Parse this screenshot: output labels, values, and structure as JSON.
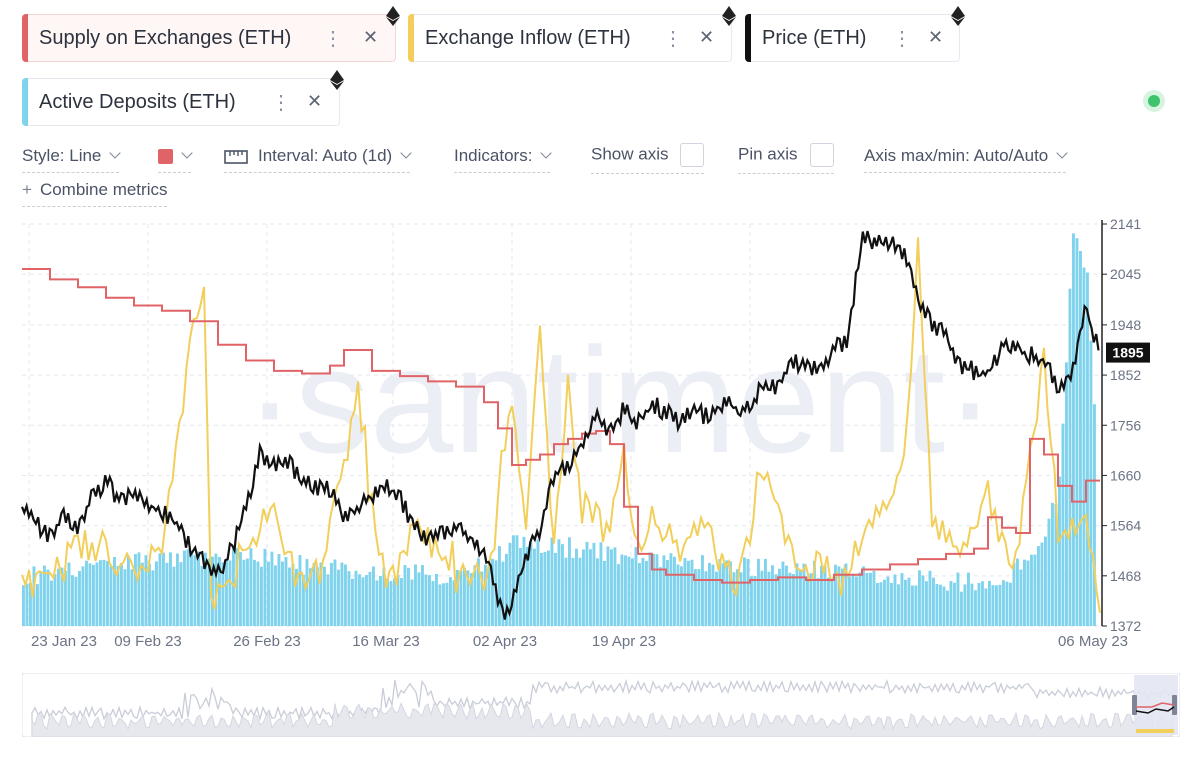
{
  "metric_chips": [
    {
      "label": "Supply on Exchanges (ETH)",
      "color": "#e06467",
      "more_icon": "vertical-dots-icon",
      "close_icon": "close-icon"
    },
    {
      "label": "Exchange Inflow (ETH)",
      "color": "#f2cf5b",
      "more_icon": "vertical-dots-icon",
      "close_icon": "close-icon"
    },
    {
      "label": "Price (ETH)",
      "color": "#111111",
      "more_icon": "vertical-dots-icon",
      "close_icon": "close-icon"
    },
    {
      "label": "Active Deposits (ETH)",
      "color": "#7fd3ec",
      "more_icon": "vertical-dots-icon",
      "close_icon": "close-icon"
    }
  ],
  "toolbar": {
    "style_label": "Style: Line",
    "color_swatch": "#e06467",
    "interval_label": "Interval: Auto (1d)",
    "indicators_label": "Indicators:",
    "show_axis_label": "Show axis",
    "pin_axis_label": "Pin axis",
    "axis_minmax_label": "Axis max/min: Auto/Auto",
    "combine_label": "Combine metrics"
  },
  "status_dot_color": "#3ec46d",
  "watermark": "·santiment·",
  "chart_data": {
    "type": "line",
    "x_ticks": [
      "23 Jan 23",
      "09 Feb 23",
      "26 Feb 23",
      "16 Mar 23",
      "02 Apr 23",
      "19 Apr 23",
      "06 May 23"
    ],
    "x_range": [
      "22 Jan 23",
      "07 May 23"
    ],
    "y_ticks": [
      2141,
      2045,
      1948,
      1852,
      1756,
      1660,
      1564,
      1468,
      1372
    ],
    "ylim": [
      1372,
      2141
    ],
    "current_price_label": "1895",
    "grid": true,
    "series": [
      {
        "name": "Price (ETH)",
        "color": "#111111",
        "type": "line",
        "values": [
          [
            0,
            1600
          ],
          [
            2,
            1570
          ],
          [
            4,
            1540
          ],
          [
            6,
            1585
          ],
          [
            8,
            1560
          ],
          [
            10,
            1620
          ],
          [
            12,
            1650
          ],
          [
            14,
            1610
          ],
          [
            16,
            1630
          ],
          [
            18,
            1600
          ],
          [
            20,
            1590
          ],
          [
            22,
            1570
          ],
          [
            24,
            1520
          ],
          [
            26,
            1500
          ],
          [
            28,
            1470
          ],
          [
            30,
            1520
          ],
          [
            32,
            1600
          ],
          [
            34,
            1700
          ],
          [
            36,
            1680
          ],
          [
            38,
            1690
          ],
          [
            40,
            1650
          ],
          [
            42,
            1640
          ],
          [
            44,
            1630
          ],
          [
            46,
            1580
          ],
          [
            48,
            1600
          ],
          [
            50,
            1620
          ],
          [
            52,
            1640
          ],
          [
            54,
            1620
          ],
          [
            56,
            1560
          ],
          [
            58,
            1540
          ],
          [
            60,
            1550
          ],
          [
            62,
            1560
          ],
          [
            64,
            1540
          ],
          [
            66,
            1510
          ],
          [
            68,
            1430
          ],
          [
            69,
            1390
          ],
          [
            70,
            1420
          ],
          [
            72,
            1500
          ],
          [
            74,
            1560
          ],
          [
            76,
            1660
          ],
          [
            78,
            1680
          ],
          [
            80,
            1720
          ],
          [
            82,
            1780
          ],
          [
            84,
            1740
          ],
          [
            86,
            1790
          ],
          [
            88,
            1760
          ],
          [
            90,
            1800
          ],
          [
            92,
            1780
          ],
          [
            94,
            1760
          ],
          [
            96,
            1790
          ],
          [
            98,
            1770
          ],
          [
            100,
            1800
          ],
          [
            102,
            1790
          ],
          [
            104,
            1790
          ],
          [
            106,
            1840
          ],
          [
            108,
            1830
          ],
          [
            110,
            1880
          ],
          [
            112,
            1870
          ],
          [
            114,
            1860
          ],
          [
            116,
            1900
          ],
          [
            118,
            1920
          ],
          [
            120,
            2120
          ],
          [
            122,
            2100
          ],
          [
            124,
            2110
          ],
          [
            126,
            2080
          ],
          [
            128,
            2000
          ],
          [
            130,
            1950
          ],
          [
            132,
            1930
          ],
          [
            134,
            1870
          ],
          [
            136,
            1860
          ],
          [
            138,
            1850
          ],
          [
            140,
            1910
          ],
          [
            142,
            1900
          ],
          [
            144,
            1890
          ],
          [
            146,
            1880
          ],
          [
            148,
            1830
          ],
          [
            150,
            1860
          ],
          [
            152,
            1990
          ],
          [
            153,
            1930
          ],
          [
            154,
            1895
          ]
        ]
      },
      {
        "name": "Supply on Exchanges (ETH)",
        "color": "#e06467",
        "type": "step",
        "values": [
          [
            0,
            2055
          ],
          [
            4,
            2035
          ],
          [
            8,
            2020
          ],
          [
            12,
            2000
          ],
          [
            16,
            1985
          ],
          [
            20,
            1975
          ],
          [
            24,
            1955
          ],
          [
            28,
            1910
          ],
          [
            32,
            1880
          ],
          [
            36,
            1860
          ],
          [
            40,
            1855
          ],
          [
            44,
            1870
          ],
          [
            46,
            1900
          ],
          [
            50,
            1860
          ],
          [
            54,
            1850
          ],
          [
            58,
            1840
          ],
          [
            62,
            1830
          ],
          [
            66,
            1800
          ],
          [
            68,
            1750
          ],
          [
            70,
            1680
          ],
          [
            72,
            1690
          ],
          [
            74,
            1700
          ],
          [
            76,
            1720
          ],
          [
            78,
            1730
          ],
          [
            80,
            1740
          ],
          [
            82,
            1745
          ],
          [
            84,
            1720
          ],
          [
            86,
            1600
          ],
          [
            88,
            1510
          ],
          [
            90,
            1480
          ],
          [
            92,
            1470
          ],
          [
            96,
            1460
          ],
          [
            100,
            1455
          ],
          [
            104,
            1460
          ],
          [
            108,
            1465
          ],
          [
            112,
            1460
          ],
          [
            116,
            1470
          ],
          [
            120,
            1480
          ],
          [
            124,
            1490
          ],
          [
            128,
            1500
          ],
          [
            132,
            1510
          ],
          [
            136,
            1520
          ],
          [
            138,
            1580
          ],
          [
            140,
            1560
          ],
          [
            142,
            1550
          ],
          [
            144,
            1730
          ],
          [
            146,
            1700
          ],
          [
            148,
            1640
          ],
          [
            150,
            1610
          ],
          [
            152,
            1650
          ],
          [
            154,
            1650
          ]
        ]
      },
      {
        "name": "Exchange Inflow (ETH)",
        "color": "#f2cf5b",
        "type": "line",
        "values": [
          [
            0,
            1470
          ],
          [
            5,
            1520
          ],
          [
            10,
            1490
          ],
          [
            15,
            1530
          ],
          [
            20,
            1480
          ],
          [
            26,
            2070
          ],
          [
            27,
            1450
          ],
          [
            32,
            1500
          ],
          [
            36,
            1560
          ],
          [
            40,
            1490
          ],
          [
            44,
            1520
          ],
          [
            48,
            1780
          ],
          [
            52,
            1490
          ],
          [
            56,
            1540
          ],
          [
            60,
            1470
          ],
          [
            64,
            1500
          ],
          [
            66,
            1490
          ],
          [
            68,
            1600
          ],
          [
            70,
            1790
          ],
          [
            72,
            1530
          ],
          [
            74,
            1950
          ],
          [
            76,
            1560
          ],
          [
            78,
            1880
          ],
          [
            80,
            1600
          ],
          [
            84,
            1500
          ],
          [
            86,
            1720
          ],
          [
            88,
            1540
          ],
          [
            90,
            1640
          ],
          [
            94,
            1470
          ],
          [
            98,
            1560
          ],
          [
            102,
            1480
          ],
          [
            106,
            1650
          ],
          [
            110,
            1470
          ],
          [
            114,
            1530
          ],
          [
            118,
            1460
          ],
          [
            122,
            1560
          ],
          [
            126,
            1700
          ],
          [
            128,
            2120
          ],
          [
            130,
            1550
          ],
          [
            134,
            1460
          ],
          [
            138,
            1660
          ],
          [
            142,
            1480
          ],
          [
            146,
            1850
          ],
          [
            148,
            1540
          ],
          [
            152,
            1620
          ],
          [
            154,
            1400
          ]
        ]
      },
      {
        "name": "Active Deposits (ETH)",
        "color": "#7fd3ec",
        "type": "bar",
        "values": [
          [
            0,
            1470
          ],
          [
            10,
            1480
          ],
          [
            20,
            1500
          ],
          [
            30,
            1510
          ],
          [
            40,
            1490
          ],
          [
            50,
            1470
          ],
          [
            60,
            1470
          ],
          [
            66,
            1490
          ],
          [
            70,
            1530
          ],
          [
            80,
            1520
          ],
          [
            90,
            1500
          ],
          [
            100,
            1490
          ],
          [
            110,
            1480
          ],
          [
            120,
            1470
          ],
          [
            130,
            1460
          ],
          [
            140,
            1450
          ],
          [
            146,
            1550
          ],
          [
            148,
            1640
          ],
          [
            150,
            2130
          ],
          [
            152,
            2060
          ],
          [
            153,
            1780
          ]
        ]
      }
    ]
  },
  "navigator": {
    "label": "overview navigator"
  }
}
